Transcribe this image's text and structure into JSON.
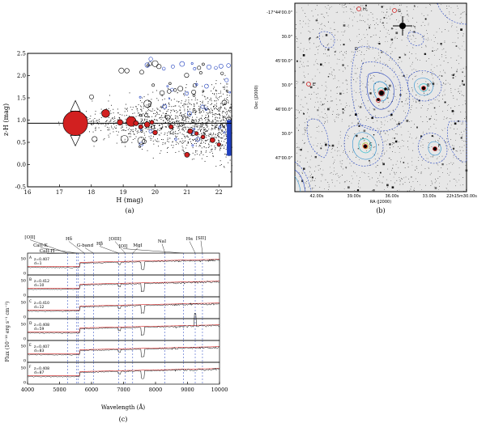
{
  "panel_a": {
    "caption": "(a)",
    "chart_data": {
      "type": "scatter",
      "xlabel": "H (mag)",
      "ylabel": "z-H (mag)",
      "xlim": [
        16,
        22.4
      ],
      "ylim": [
        -0.5,
        2.5
      ],
      "xticks": [
        "16",
        "17",
        "18",
        "19",
        "20",
        "21",
        "22"
      ],
      "yticks": [
        "-0.5",
        "0.0",
        "0.5",
        "1.0",
        "1.5",
        "2.0",
        "2.5"
      ],
      "red_sequence": {
        "x": [
          16.0,
          22.4
        ],
        "y": [
          0.93,
          0.93
        ]
      },
      "members": {
        "x": [
          17.5,
          18.45,
          18.9,
          19.25,
          19.4,
          19.55,
          19.75,
          20.0,
          20.5,
          21.1,
          21.3,
          21.5,
          21.8,
          22.0,
          21.0,
          19.9
        ],
        "y": [
          0.93,
          1.15,
          0.95,
          0.97,
          0.93,
          0.85,
          0.9,
          0.72,
          0.85,
          0.75,
          0.7,
          0.62,
          0.55,
          0.45,
          0.22,
          0.95
        ],
        "size": [
          8,
          2.6,
          1.8,
          3.2,
          1.6,
          1.4,
          1.8,
          1.5,
          1.4,
          1.6,
          1.2,
          1.3,
          1.6,
          1.2,
          1.6,
          1.3
        ]
      }
    }
  },
  "panel_b": {
    "caption": "(b)",
    "ylabel": "Dec (J2000)",
    "xlabel": "RA (J2000)",
    "dec_ticks": [
      "-17°44'00.0\"",
      "30.0\"",
      "45'00.0\"",
      "30.0\"",
      "46'00.0\"",
      "30.0\"",
      "47'00.0\""
    ],
    "ra_ticks": [
      "42.00s",
      "39.00s",
      "36.00s",
      "33.00s",
      "22h15m30.00s"
    ],
    "labels": [
      "H",
      "G",
      "D",
      "A",
      "B",
      "E",
      "C",
      "F"
    ]
  },
  "panel_c": {
    "caption": "(c)",
    "xlabel": "Wavelength (Å)",
    "ylabel": "Flux (10⁻¹⁸ erg s⁻¹ cm⁻²)",
    "xticks": [
      "4000",
      "5000",
      "6000",
      "7000",
      "8000",
      "9000",
      "10000"
    ],
    "line_labels": [
      "[OII]",
      "CaII-K",
      "CaII-H",
      "Hδ",
      "G-band",
      "Hβ",
      "[OIII]",
      "[OI]",
      "MgI",
      "NaI",
      "Hα",
      "[SII]"
    ],
    "spectra": [
      {
        "id": "A",
        "z": "z=0.407",
        "d": "d=1"
      },
      {
        "id": "B",
        "z": "z=0.412",
        "d": "d=10"
      },
      {
        "id": "C",
        "z": "z=0.410",
        "d": "d=12"
      },
      {
        "id": "D",
        "z": "z=0.408",
        "d": "d=59"
      },
      {
        "id": "E",
        "z": "z=0.407",
        "d": "d=83"
      },
      {
        "id": "F",
        "z": "z=0.408",
        "d": "d=87"
      }
    ],
    "panel_yticks": [
      "0",
      "50"
    ]
  },
  "colors": {
    "red": "#d22020",
    "blue": "#1f3fbf",
    "cyan": "#40c0d0"
  }
}
